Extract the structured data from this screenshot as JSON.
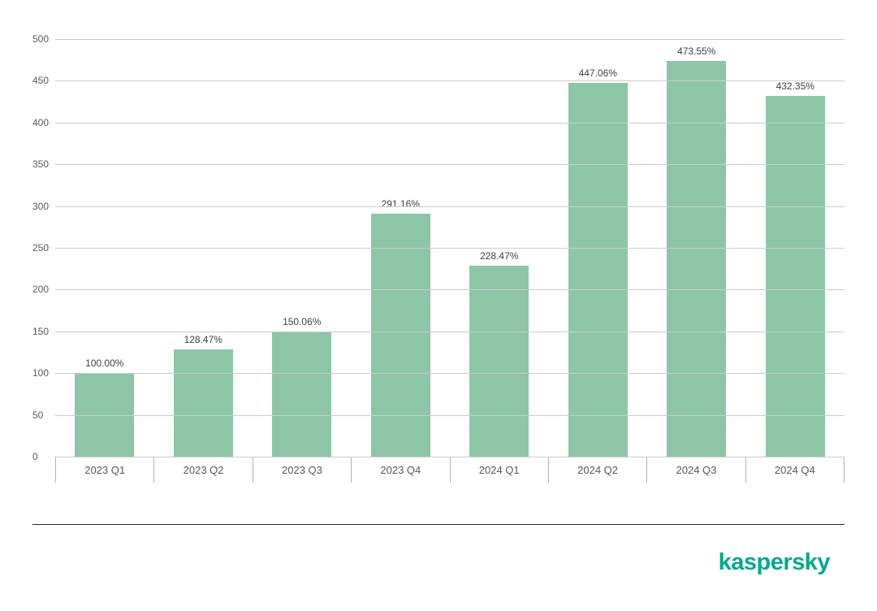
{
  "chart_data": {
    "type": "bar",
    "title": "",
    "xlabel": "",
    "ylabel": "",
    "categories": [
      "2023 Q1",
      "2023 Q2",
      "2023 Q3",
      "2023 Q4",
      "2024 Q1",
      "2024 Q2",
      "2024 Q3",
      "2024 Q4"
    ],
    "values": [
      100.0,
      128.47,
      150.06,
      291.16,
      228.47,
      447.06,
      473.55,
      432.35
    ],
    "value_labels": [
      "100.00%",
      "128.47%",
      "150.06%",
      "291.16%",
      "228.47%",
      "447.06%",
      "473.55%",
      "432.35%"
    ],
    "ylim": [
      0,
      500
    ],
    "ytick_step": 50,
    "yticks": [
      0,
      50,
      100,
      150,
      200,
      250,
      300,
      350,
      400,
      450,
      500
    ],
    "grid": true,
    "legend": "none",
    "bar_color": "#8dc6a7"
  },
  "footer": {
    "brand": "kaspersky",
    "brand_color": "#00a88e"
  }
}
